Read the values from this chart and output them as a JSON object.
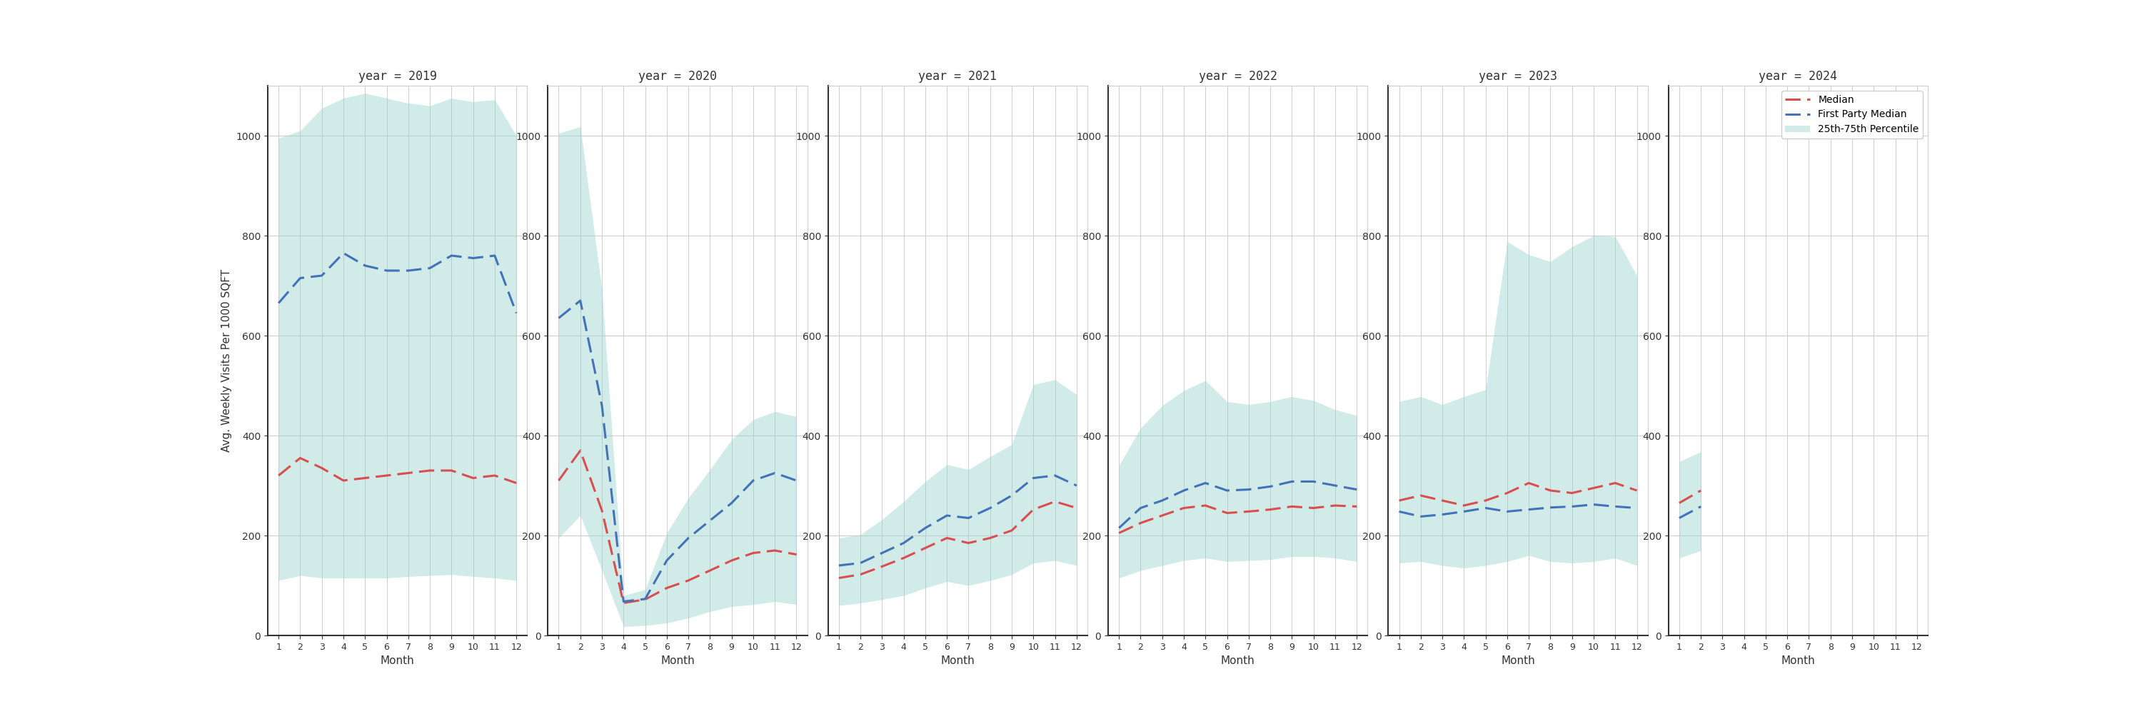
{
  "years": [
    2019,
    2020,
    2021,
    2022,
    2023,
    2024
  ],
  "months": [
    1,
    2,
    3,
    4,
    5,
    6,
    7,
    8,
    9,
    10,
    11,
    12
  ],
  "ylabel": "Avg. Weekly Visits Per 1000 SQFT",
  "xlabel": "Month",
  "median": {
    "2019": [
      320,
      355,
      335,
      310,
      315,
      320,
      325,
      330,
      330,
      315,
      320,
      305
    ],
    "2020": [
      310,
      370,
      250,
      65,
      72,
      95,
      110,
      130,
      150,
      165,
      170,
      162
    ],
    "2021": [
      115,
      122,
      138,
      155,
      175,
      195,
      185,
      195,
      210,
      252,
      268,
      255
    ],
    "2022": [
      205,
      225,
      240,
      255,
      260,
      245,
      248,
      252,
      258,
      255,
      260,
      258
    ],
    "2023": [
      270,
      280,
      270,
      260,
      270,
      285,
      305,
      290,
      285,
      295,
      305,
      290
    ],
    "2024": [
      265,
      290,
      null,
      null,
      null,
      null,
      null,
      null,
      null,
      null,
      null,
      null
    ]
  },
  "fp_median": {
    "2019": [
      665,
      715,
      720,
      765,
      740,
      730,
      730,
      735,
      760,
      755,
      760,
      645
    ],
    "2020": [
      635,
      670,
      460,
      68,
      73,
      150,
      195,
      230,
      265,
      310,
      325,
      310
    ],
    "2021": [
      140,
      145,
      165,
      185,
      215,
      240,
      235,
      255,
      280,
      315,
      320,
      300
    ],
    "2022": [
      215,
      255,
      270,
      290,
      305,
      290,
      292,
      298,
      308,
      308,
      300,
      292
    ],
    "2023": [
      248,
      238,
      242,
      248,
      255,
      248,
      252,
      256,
      258,
      262,
      258,
      255
    ],
    "2024": [
      235,
      258,
      null,
      null,
      null,
      null,
      null,
      null,
      null,
      null,
      null,
      null
    ]
  },
  "p25": {
    "2019": [
      110,
      120,
      115,
      115,
      115,
      115,
      118,
      120,
      122,
      118,
      115,
      110
    ],
    "2020": [
      195,
      240,
      130,
      18,
      20,
      25,
      35,
      48,
      58,
      62,
      68,
      62
    ],
    "2021": [
      60,
      65,
      72,
      80,
      95,
      108,
      100,
      110,
      122,
      145,
      150,
      140
    ],
    "2022": [
      115,
      130,
      140,
      150,
      155,
      148,
      150,
      152,
      158,
      158,
      155,
      148
    ],
    "2023": [
      145,
      148,
      140,
      135,
      140,
      148,
      160,
      148,
      145,
      148,
      155,
      140
    ],
    "2024": [
      155,
      170,
      null,
      null,
      null,
      null,
      null,
      null,
      null,
      null,
      null,
      null
    ]
  },
  "p75": {
    "2019": [
      995,
      1010,
      1055,
      1075,
      1085,
      1075,
      1065,
      1060,
      1075,
      1068,
      1072,
      1000
    ],
    "2020": [
      1005,
      1018,
      692,
      80,
      92,
      205,
      275,
      332,
      392,
      432,
      448,
      438
    ],
    "2021": [
      195,
      202,
      232,
      268,
      308,
      342,
      332,
      358,
      382,
      502,
      512,
      482
    ],
    "2022": [
      340,
      415,
      460,
      490,
      510,
      468,
      462,
      468,
      478,
      470,
      452,
      440
    ],
    "2023": [
      468,
      478,
      462,
      478,
      492,
      788,
      762,
      748,
      778,
      800,
      798,
      720
    ],
    "2024": [
      348,
      368,
      null,
      null,
      null,
      null,
      null,
      null,
      null,
      null,
      null,
      null
    ]
  },
  "ylim": [
    0,
    1100
  ],
  "yticks": [
    0,
    200,
    400,
    600,
    800,
    1000
  ],
  "colors": {
    "median": "#d94f4f",
    "fp_median": "#4472b8",
    "fill": "#99d4cc",
    "fill_alpha": 0.45,
    "background": "#ffffff",
    "grid": "#cccccc",
    "spine_left": "#222222",
    "spine_bottom": "#222222"
  },
  "legend_labels": [
    "Median",
    "First Party Median",
    "25th-75th Percentile"
  ]
}
